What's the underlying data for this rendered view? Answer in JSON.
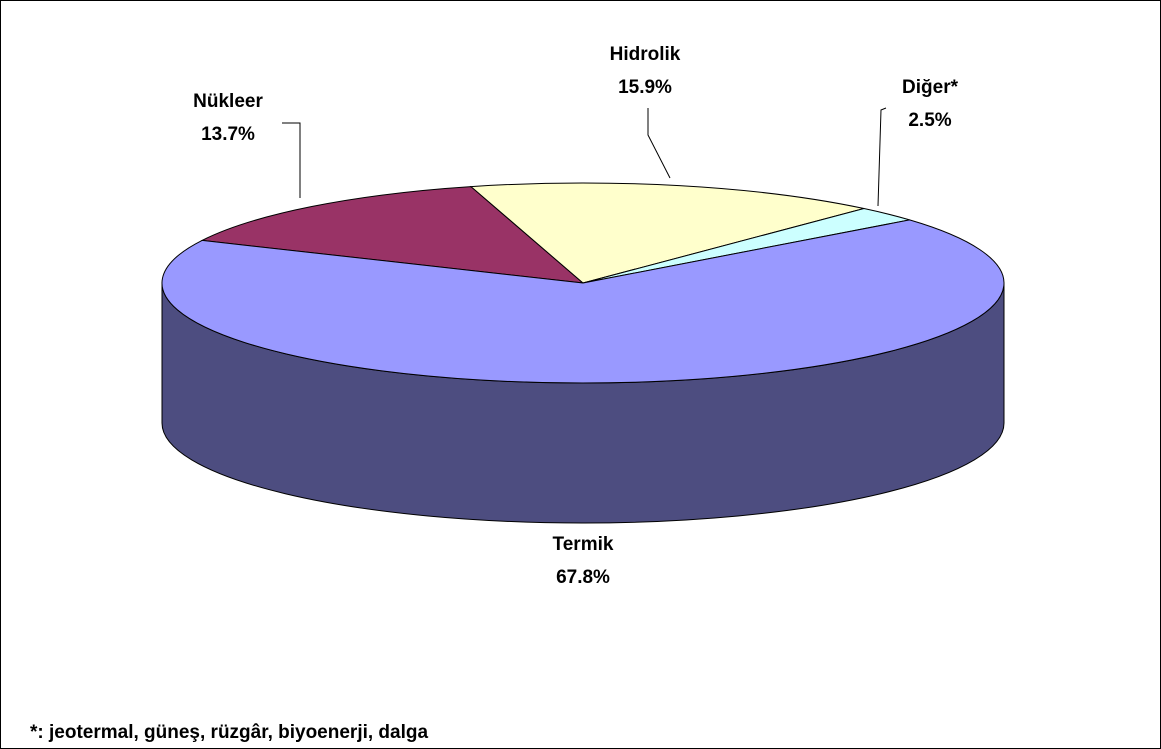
{
  "chart_data": {
    "type": "pie",
    "categories": [
      "Nükleer",
      "Hidrolik",
      "Diğer*",
      "Termik"
    ],
    "values": [
      13.7,
      15.9,
      2.5,
      67.8
    ],
    "value_labels": [
      "13.7%",
      "15.9%",
      "2.5%",
      "67.8%"
    ],
    "colors": [
      "#993366",
      "#ffffcc",
      "#ccffff",
      "#9999ff"
    ],
    "footnote": "*: jeotermal, güneş, rüzgâr, biyoenerji, dalga"
  }
}
